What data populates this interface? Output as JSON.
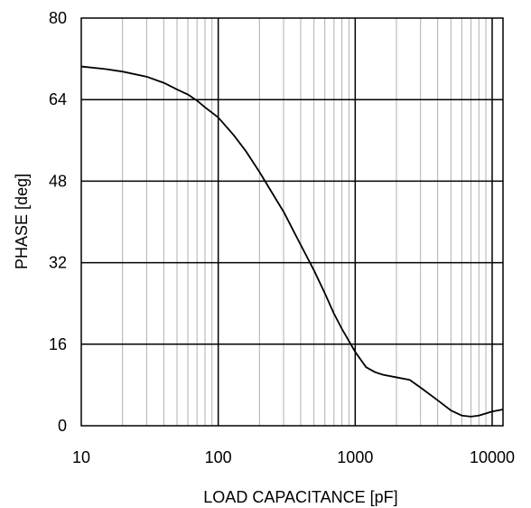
{
  "chart_data": {
    "type": "line",
    "xlabel": "LOAD CAPACITANCE [pF]",
    "ylabel": "PHASE [deg]",
    "x_scale": "log",
    "xlim": [
      10,
      12000
    ],
    "ylim": [
      0,
      80
    ],
    "x_ticks": [
      10,
      100,
      1000,
      10000
    ],
    "x_tick_labels": [
      "10",
      "100",
      "1000",
      "10000"
    ],
    "y_ticks": [
      0,
      16,
      32,
      48,
      64,
      80
    ],
    "y_tick_labels": [
      "0",
      "16",
      "32",
      "48",
      "64",
      "80"
    ],
    "grid": true,
    "series": [
      {
        "x": [
          10,
          15,
          20,
          30,
          40,
          50,
          60,
          70,
          80,
          100,
          130,
          160,
          200,
          250,
          300,
          400,
          500,
          600,
          700,
          800,
          1000,
          1200,
          1400,
          1600,
          2000,
          2500,
          3000,
          4000,
          5000,
          6000,
          7000,
          8000,
          10000,
          12000
        ],
        "y": [
          70.5,
          70.0,
          69.5,
          68.5,
          67.3,
          66.0,
          65.0,
          63.8,
          62.5,
          60.5,
          57.0,
          53.8,
          49.8,
          45.5,
          42.0,
          35.5,
          30.5,
          26.0,
          22.0,
          19.0,
          14.5,
          11.5,
          10.5,
          10.0,
          9.5,
          9.0,
          7.5,
          5.0,
          3.0,
          2.0,
          1.8,
          2.0,
          2.8,
          3.2
        ]
      }
    ]
  }
}
